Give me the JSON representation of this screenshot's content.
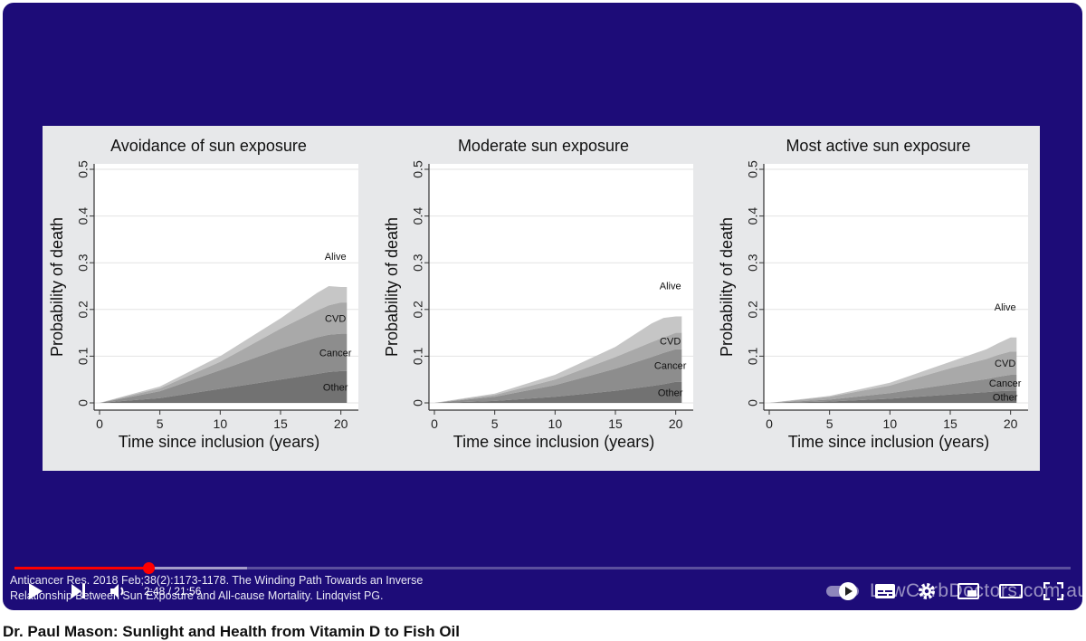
{
  "video": {
    "title": "Dr. Paul Mason: Sunlight and Health from Vitamin D to Fish Oil",
    "time_display": "2:48 / 21:56",
    "progress_played": 0.127,
    "progress_buffered": 0.22,
    "caption_line1": "Anticancer Res. 2018 Feb;38(2):1173-1178. The Winding Path Towards an Inverse",
    "caption_line2": "Relationship Between Sun Exposure and All-cause Mortality. Lindqvist PG.",
    "watermark": "LowCarbDoctors.com.au"
  },
  "controls": {
    "play_icon": "play-icon",
    "next_icon": "next-icon",
    "volume_icon": "volume-icon",
    "autoplay_icon": "autoplay-toggle-icon",
    "subtitles_icon": "subtitles-icon",
    "settings_icon": "gear-icon",
    "miniplayer_icon": "miniplayer-icon",
    "theater_icon": "theater-icon",
    "fullscreen_icon": "fullscreen-icon"
  },
  "colors": {
    "player_bg": "#1d0c78",
    "progress": "#ff0000",
    "alive_layer": "#c6c6c6",
    "cvd_layer": "#a9a9a9",
    "cancer_layer": "#8d8d8d",
    "other_layer": "#727272"
  },
  "chart_data": [
    {
      "type": "area",
      "title": "Avoidance of sun exposure",
      "xlabel": "Time since inclusion (years)",
      "ylabel": "Probability of death",
      "xlim": [
        0,
        21
      ],
      "ylim": [
        0,
        0.5
      ],
      "xticks": [
        "0",
        "5",
        "10",
        "15",
        "20"
      ],
      "yticks": [
        "0",
        "0.1",
        "0.2",
        "0.3",
        "0.4",
        "0.5"
      ],
      "grid": true,
      "x": [
        0,
        5,
        10,
        15,
        18,
        19,
        20,
        20.5
      ],
      "series": [
        {
          "name": "Other",
          "values": [
            0,
            0.01,
            0.03,
            0.05,
            0.062,
            0.066,
            0.068,
            0.068
          ]
        },
        {
          "name": "Cancer",
          "values": [
            0,
            0.015,
            0.04,
            0.066,
            0.078,
            0.08,
            0.08,
            0.08
          ]
        },
        {
          "name": "CVD",
          "values": [
            0,
            0.006,
            0.018,
            0.043,
            0.057,
            0.063,
            0.067,
            0.067
          ]
        },
        {
          "name": "Alive",
          "values": [
            0,
            0.004,
            0.012,
            0.022,
            0.038,
            0.041,
            0.033,
            0.033
          ]
        }
      ],
      "labels": [
        "Alive",
        "CVD",
        "Cancer",
        "Other"
      ]
    },
    {
      "type": "area",
      "title": "Moderate sun exposure",
      "xlabel": "Time since inclusion (years)",
      "ylabel": "Probability of death",
      "xlim": [
        0,
        21
      ],
      "ylim": [
        0,
        0.5
      ],
      "xticks": [
        "0",
        "5",
        "10",
        "15",
        "20"
      ],
      "yticks": [
        "0",
        "0.1",
        "0.2",
        "0.3",
        "0.4",
        "0.5"
      ],
      "grid": true,
      "x": [
        0,
        5,
        10,
        15,
        18,
        19,
        20,
        20.5
      ],
      "series": [
        {
          "name": "Other",
          "values": [
            0,
            0.004,
            0.013,
            0.026,
            0.036,
            0.04,
            0.045,
            0.045
          ]
        },
        {
          "name": "Cancer",
          "values": [
            0,
            0.009,
            0.025,
            0.047,
            0.062,
            0.067,
            0.07,
            0.07
          ]
        },
        {
          "name": "CVD",
          "values": [
            0,
            0.004,
            0.012,
            0.025,
            0.032,
            0.033,
            0.035,
            0.035
          ]
        },
        {
          "name": "Alive",
          "values": [
            0,
            0.003,
            0.01,
            0.022,
            0.04,
            0.042,
            0.035,
            0.035
          ]
        }
      ],
      "labels": [
        "Alive",
        "CVD",
        "Cancer",
        "Other"
      ]
    },
    {
      "type": "area",
      "title": "Most active sun exposure",
      "xlabel": "Time since inclusion (years)",
      "ylabel": "Probability of death",
      "xlim": [
        0,
        21
      ],
      "ylim": [
        0,
        0.5
      ],
      "xticks": [
        "0",
        "5",
        "10",
        "15",
        "20"
      ],
      "yticks": [
        "0",
        "0.1",
        "0.2",
        "0.3",
        "0.4",
        "0.5"
      ],
      "grid": true,
      "x": [
        0,
        5,
        10,
        15,
        18,
        19,
        20,
        20.5
      ],
      "series": [
        {
          "name": "Other",
          "values": [
            0,
            0.003,
            0.009,
            0.018,
            0.023,
            0.025,
            0.026,
            0.026
          ]
        },
        {
          "name": "Cancer",
          "values": [
            0,
            0.004,
            0.012,
            0.022,
            0.028,
            0.031,
            0.034,
            0.034
          ]
        },
        {
          "name": "CVD",
          "values": [
            0,
            0.006,
            0.016,
            0.034,
            0.043,
            0.047,
            0.05,
            0.05
          ]
        },
        {
          "name": "Alive",
          "values": [
            0,
            0.002,
            0.006,
            0.014,
            0.021,
            0.025,
            0.03,
            0.03
          ]
        }
      ],
      "labels": [
        "Alive",
        "CVD",
        "Cancer",
        "Other"
      ]
    }
  ]
}
